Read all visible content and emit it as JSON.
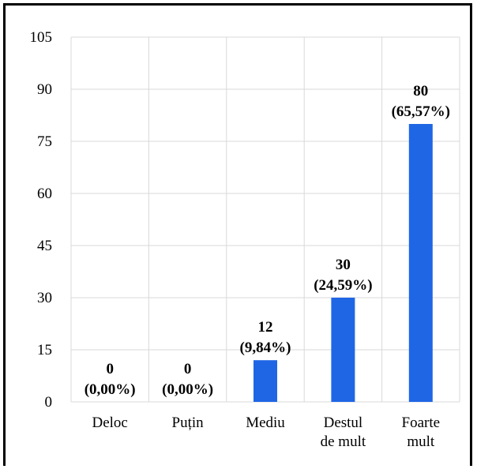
{
  "chart_data": {
    "type": "bar",
    "categories": [
      [
        "Deloc"
      ],
      [
        "Puțin"
      ],
      [
        "Mediu"
      ],
      [
        "Destul",
        "de mult"
      ],
      [
        "Foarte",
        "mult"
      ]
    ],
    "values": [
      0,
      0,
      12,
      30,
      80
    ],
    "data_labels": [
      [
        "0",
        "(0,00%)"
      ],
      [
        "0",
        "(0,00%)"
      ],
      [
        "12",
        "(9,84%)"
      ],
      [
        "30",
        "(24,59%)"
      ],
      [
        "80",
        "(65,57%)"
      ]
    ],
    "yticks": [
      0,
      15,
      30,
      45,
      60,
      75,
      90,
      105
    ],
    "ylim": [
      0,
      105
    ],
    "grid": true,
    "bar_color": "#1f66e5",
    "grid_color": "#d9d9d9",
    "title": "",
    "xlabel": "",
    "ylabel": ""
  }
}
